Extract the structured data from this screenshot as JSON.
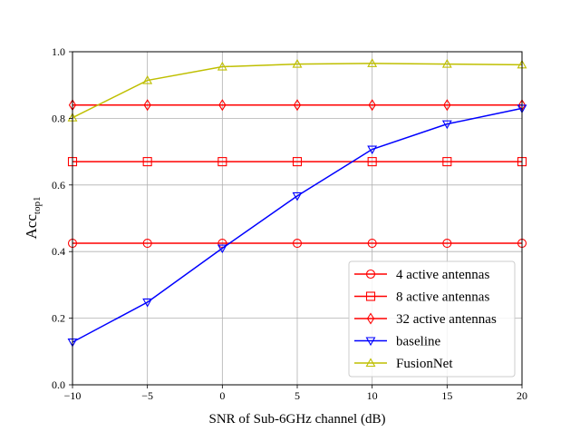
{
  "chart_data": {
    "type": "line",
    "xlabel": "SNR of Sub-6GHz channel (dB)",
    "ylabel": "Acc",
    "ylabel_subscript": "top1",
    "x": [
      -10,
      -5,
      0,
      5,
      10,
      15,
      20
    ],
    "xlim": [
      -10,
      20
    ],
    "ylim": [
      0,
      1
    ],
    "xticks": [
      -10,
      -5,
      0,
      5,
      10,
      15,
      20
    ],
    "yticks": [
      0.0,
      0.2,
      0.4,
      0.6,
      0.8,
      1.0
    ],
    "xtick_labels": [
      "−10",
      "−5",
      "0",
      "5",
      "10",
      "15",
      "20"
    ],
    "ytick_labels": [
      "0.0",
      "0.2",
      "0.4",
      "0.6",
      "0.8",
      "1.0"
    ],
    "grid": true,
    "legend_position": "bottom-right",
    "series": [
      {
        "name": "4 active antennas",
        "color": "#ff0000",
        "marker": "circle",
        "values": [
          0.425,
          0.425,
          0.425,
          0.425,
          0.425,
          0.425,
          0.425
        ]
      },
      {
        "name": "8 active antennas",
        "color": "#ff0000",
        "marker": "square",
        "values": [
          0.67,
          0.67,
          0.67,
          0.67,
          0.67,
          0.67,
          0.67
        ]
      },
      {
        "name": "32 active antennas",
        "color": "#ff0000",
        "marker": "diamond",
        "values": [
          0.84,
          0.84,
          0.84,
          0.84,
          0.84,
          0.84,
          0.84
        ]
      },
      {
        "name": "baseline",
        "color": "#0000ff",
        "marker": "triangle-down",
        "values": [
          0.128,
          0.248,
          0.41,
          0.567,
          0.707,
          0.783,
          0.83
        ]
      },
      {
        "name": "FusionNet",
        "color": "#bfbf00",
        "marker": "triangle-up",
        "values": [
          0.802,
          0.914,
          0.955,
          0.963,
          0.965,
          0.963,
          0.961
        ]
      }
    ]
  }
}
